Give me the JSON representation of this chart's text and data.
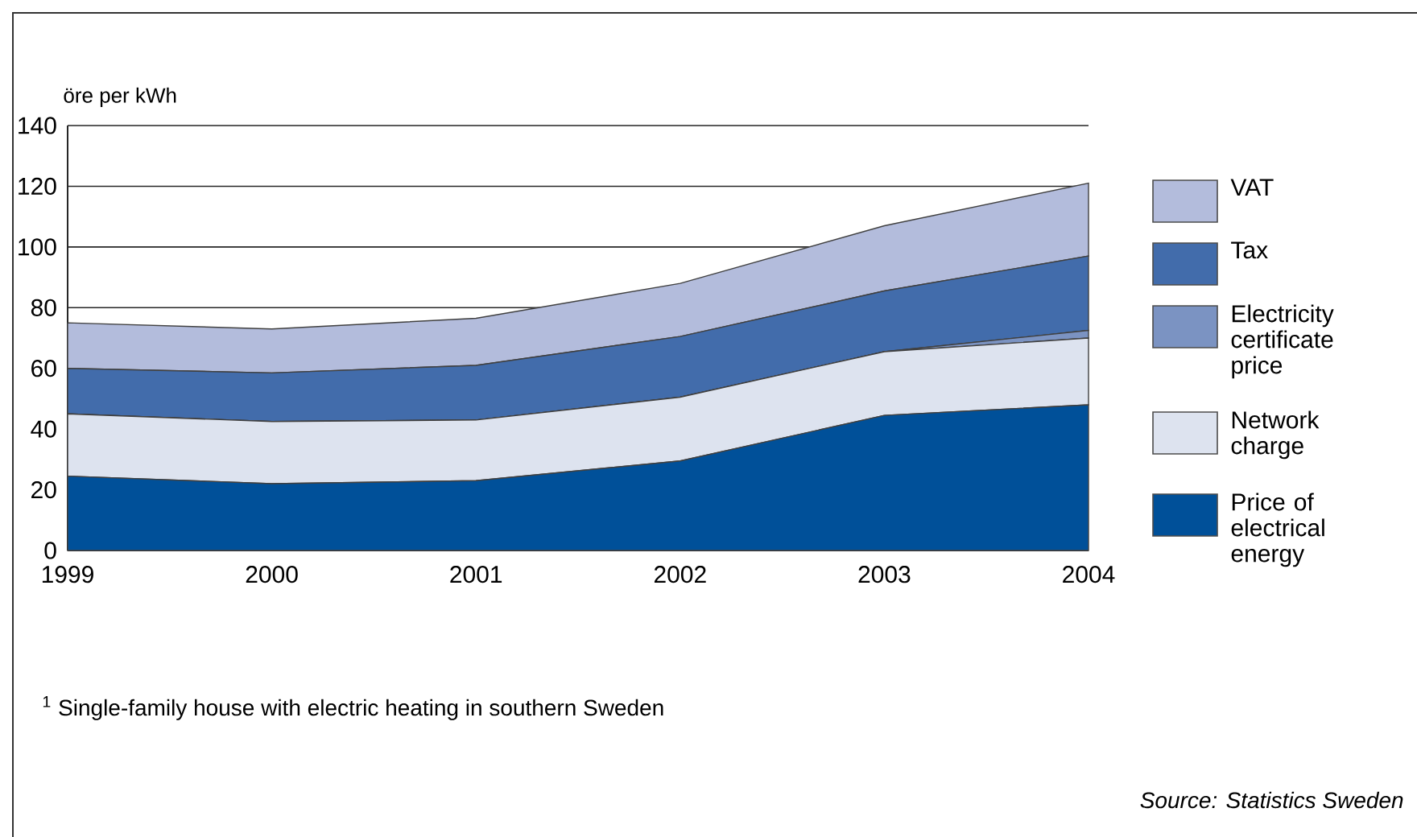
{
  "chart_data": {
    "type": "area",
    "stacked": true,
    "ylabel": "öre per kWh",
    "x": [
      1999,
      2000,
      2001,
      2002,
      2003,
      2004
    ],
    "xlim": [
      1999,
      2004
    ],
    "xticks": [
      1999,
      2000,
      2001,
      2002,
      2003,
      2004
    ],
    "ylim": [
      0,
      140
    ],
    "yticks": [
      0,
      20,
      40,
      60,
      80,
      100,
      120,
      140
    ],
    "grid": "y",
    "legend": "right",
    "series": [
      {
        "name": "Price of electrical energy",
        "color": "#005099",
        "values": [
          24.5,
          22,
          23,
          29.5,
          44.5,
          48
        ]
      },
      {
        "name": "Network charge",
        "color": "#dde3ef",
        "values": [
          20.5,
          20.5,
          20,
          21,
          21,
          22
        ]
      },
      {
        "name": "Electricity certificate price",
        "color": "#7b93c2",
        "values": [
          0,
          0,
          0,
          0,
          0,
          2.5
        ]
      },
      {
        "name": "Tax",
        "color": "#426cab",
        "values": [
          15,
          16,
          18,
          20,
          20,
          24.5
        ]
      },
      {
        "name": "VAT",
        "color": "#b3bcdc",
        "values": [
          15,
          14.5,
          15.5,
          17.5,
          21.5,
          24
        ]
      }
    ],
    "annotations": [
      "$^{1}$ Single-family house with electric heating in southern Sweden",
      "*Source: Statistics Sweden*"
    ]
  }
}
